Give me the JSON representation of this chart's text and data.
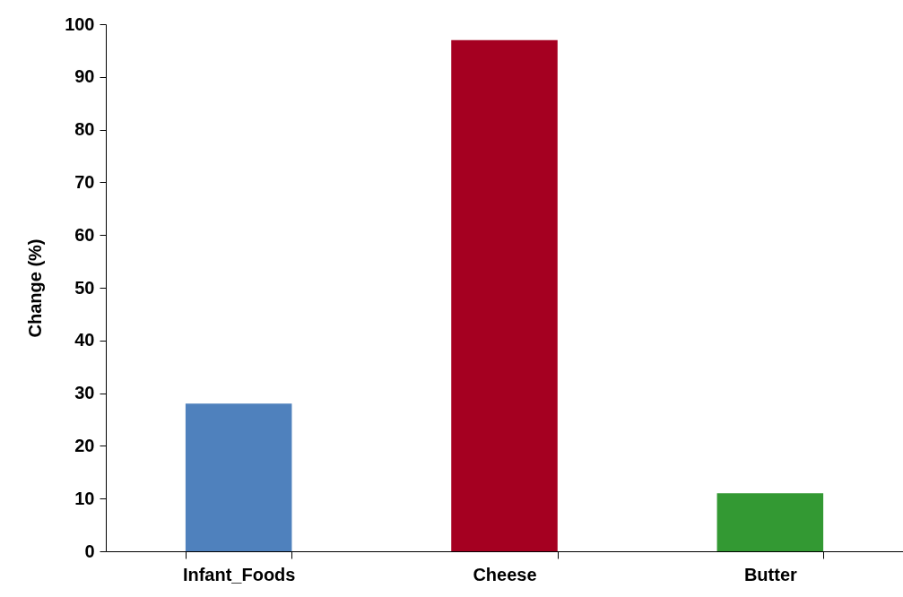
{
  "chart_data": {
    "type": "bar",
    "ylabel": "Change (%)",
    "categories": [
      "Infant_Foods",
      "Cheese",
      "Butter"
    ],
    "values": [
      28,
      97,
      11
    ],
    "colors": [
      "#4f81bd",
      "#a50021",
      "#339933"
    ],
    "ylim": [
      0,
      100
    ],
    "yticks": [
      0,
      10,
      20,
      30,
      40,
      50,
      60,
      70,
      80,
      90,
      100
    ],
    "grid": false,
    "legend": false
  }
}
